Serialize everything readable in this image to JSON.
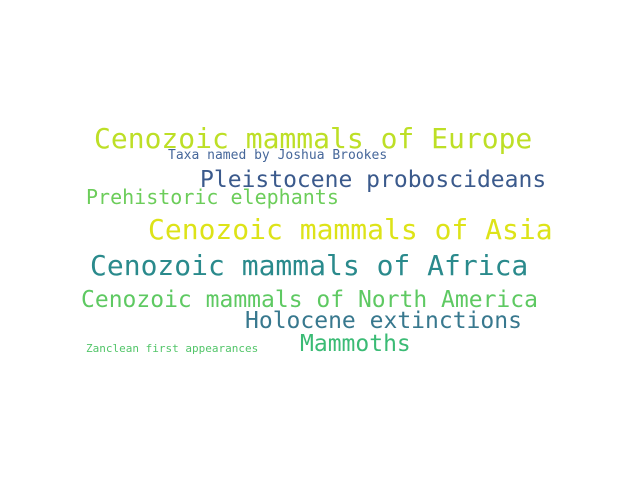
{
  "words": [
    {
      "text": "Cenozoic mammals of Europe",
      "color": "#bddf26"
    },
    {
      "text": "Taxa named by Joshua Brookes",
      "color": "#46679a"
    },
    {
      "text": "Pleistocene proboscideans",
      "color": "#3b5a8c"
    },
    {
      "text": "Prehistoric elephants",
      "color": "#6ccd5a"
    },
    {
      "text": "Cenozoic mammals of Asia",
      "color": "#dde318"
    },
    {
      "text": "Cenozoic mammals of Africa",
      "color": "#2a8a8c"
    },
    {
      "text": "Cenozoic mammals of North America",
      "color": "#5ec962"
    },
    {
      "text": "Holocene extinctions",
      "color": "#38788e"
    },
    {
      "text": "Zanclean first appearances",
      "color": "#52c569"
    },
    {
      "text": "Mammoths",
      "color": "#3bbb75"
    }
  ]
}
